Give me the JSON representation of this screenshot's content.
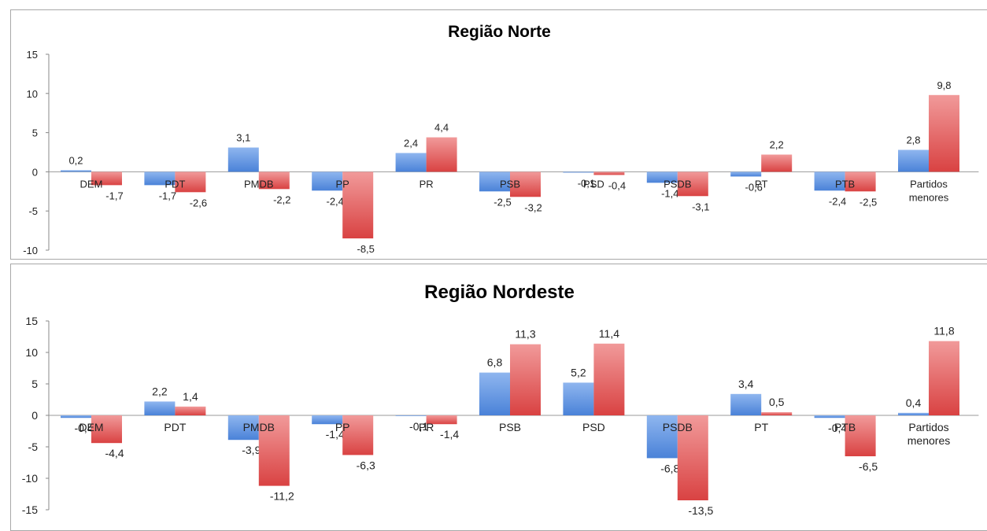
{
  "colors": {
    "series_a": "#5f93e0",
    "series_b": "#e65a5a"
  },
  "chart_data": [
    {
      "type": "bar",
      "title": "Região Norte",
      "categories": [
        "DEM",
        "PDT",
        "PMDB",
        "PP",
        "PR",
        "PSB",
        "PSD",
        "PSDB",
        "PT",
        "PTB",
        "Partidos menores"
      ],
      "series": [
        {
          "values": [
            0.2,
            -1.7,
            3.1,
            -2.4,
            2.4,
            -2.5,
            -0.1,
            -1.4,
            -0.6,
            -2.4,
            2.8
          ]
        },
        {
          "values": [
            -1.7,
            -2.6,
            -2.2,
            -8.5,
            4.4,
            -3.2,
            -0.4,
            -3.1,
            2.2,
            -2.5,
            9.8
          ]
        }
      ],
      "series_labels": [
        [
          "0,2",
          "-1,7",
          "3,1",
          "-2,4",
          "2,4",
          "-2,5",
          "-0,1",
          "-1,4",
          "-0,6",
          "-2,4",
          "2,8"
        ],
        [
          "-1,7",
          "-2,6",
          "-2,2",
          "-8,5",
          "4,4",
          "-3,2",
          "-0,4",
          "-3,1",
          "2,2",
          "-2,5",
          "9,8"
        ]
      ],
      "ylim": [
        -10,
        15
      ],
      "yticks": [
        "15",
        "10",
        "5",
        "0",
        "-5",
        "-10"
      ],
      "grid": false,
      "legend": "none"
    },
    {
      "type": "bar",
      "title": "Região Nordeste",
      "categories": [
        "DEM",
        "PDT",
        "PMDB",
        "PP",
        "PR",
        "PSB",
        "PSD",
        "PSDB",
        "PT",
        "PTB",
        "Partidos menores"
      ],
      "series": [
        {
          "values": [
            -0.4,
            2.2,
            -3.9,
            -1.4,
            -0.1,
            6.8,
            5.2,
            -6.8,
            3.4,
            -0.4,
            0.4
          ]
        },
        {
          "values": [
            -4.4,
            1.4,
            -11.2,
            -6.3,
            -1.4,
            11.3,
            11.4,
            -13.5,
            0.5,
            -6.5,
            11.8
          ]
        }
      ],
      "series_labels": [
        [
          "-0,4",
          "2,2",
          "-3,9",
          "-1,4",
          "-0,1",
          "6,8",
          "5,2",
          "-6,8",
          "3,4",
          "-0,4",
          "0,4"
        ],
        [
          "-4,4",
          "1,4",
          "-11,2",
          "-6,3",
          "-1,4",
          "11,3",
          "11,4",
          "-13,5",
          "0,5",
          "-6,5",
          "11,8"
        ]
      ],
      "ylim": [
        -15,
        15
      ],
      "yticks": [
        "15",
        "10",
        "5",
        "0",
        "-5",
        "-10",
        "-15"
      ],
      "grid": false,
      "legend": "none"
    }
  ]
}
